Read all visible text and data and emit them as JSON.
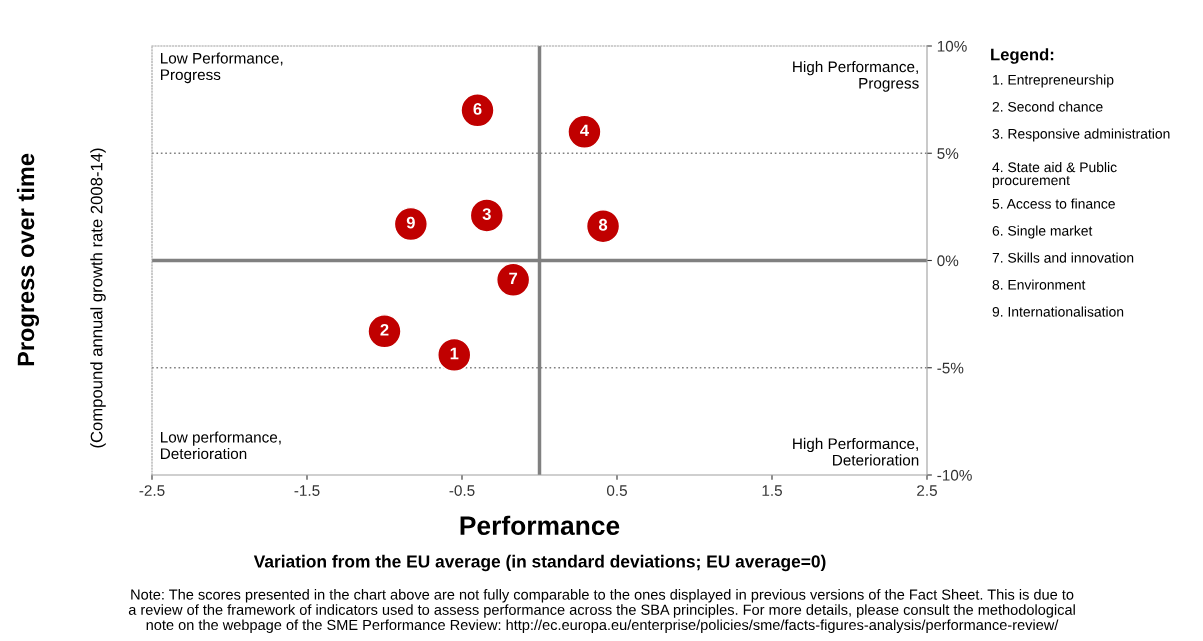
{
  "chart_data": {
    "type": "scatter",
    "xlabel": "Performance",
    "ylabel": "Progress over time",
    "x": [
      -0.55,
      -1.0,
      -0.34,
      0.29,
      -0.4,
      -0.17,
      0.41,
      -0.83
    ],
    "values": [
      -4.4,
      -3.3,
      2.1,
      6.0,
      7.0,
      -0.9,
      1.6,
      1.7
    ],
    "color": "#c00000",
    "marker": "circle",
    "grid": false,
    "xlim": [
      -2.5,
      2.5
    ],
    "xticks": [
      -2.5,
      -1.5,
      -0.5,
      0.5,
      1.5,
      2.5
    ],
    "ylim": [
      -10,
      10
    ],
    "yticks": [
      {
        "value": -10,
        "label": "-10%"
      },
      {
        "value": -5,
        "label": "-5%"
      },
      {
        "value": 0,
        "label": "0%"
      },
      {
        "value": 5,
        "label": "5%"
      },
      {
        "value": 10,
        "label": "10%"
      }
    ],
    "ref_lines": [
      {
        "axis": "x",
        "value": 0,
        "color": "#808080",
        "line_style": "solid"
      },
      {
        "axis": "y",
        "value": 0,
        "color": "#808080",
        "line_style": "solid"
      },
      {
        "axis": "y",
        "value": 5,
        "color": "#808080",
        "line_style": "dotted"
      },
      {
        "axis": "y",
        "value": -5,
        "color": "#808080",
        "line_style": "dotted"
      }
    ],
    "annotations": [
      {
        "text": "1",
        "x": -0.55,
        "y": -4.4
      },
      {
        "text": "2",
        "x": -1.0,
        "y": -3.3
      },
      {
        "text": "3",
        "x": -0.34,
        "y": 2.1
      },
      {
        "text": "4",
        "x": 0.29,
        "y": 6.0
      },
      {
        "text": "6",
        "x": -0.4,
        "y": 7.0
      },
      {
        "text": "7",
        "x": -0.17,
        "y": -0.9
      },
      {
        "text": "8",
        "x": 0.41,
        "y": 1.6
      },
      {
        "text": "9",
        "x": -0.83,
        "y": 1.7
      },
      "Low Performance,\nProgress",
      "High Performance,\nProgress",
      "Low performance,\nDeterioration",
      "High Performance,\nDeterioration",
      "Legend:",
      "1. Entrepreneurship",
      "2. Second chance",
      "3. Responsive administration",
      "4. State aid & Public\nprocurement",
      "5. Access to finance",
      "6. Single market",
      "7. Skills and innovation",
      "8. Environment",
      "9. Internationalisation",
      "(Compound annual growth rate 2008-14)",
      "Variation from the EU average (in standard deviations; EU average=0)",
      "Note: The scores presented in the chart above are not fully comparable to the ones displayed in previous versions of the Fact Sheet. This is due to\na review of the framework of indicators used to assess performance across the SBA principles. For more details, please consult the methodological\nnote on the webpage of the SME Performance Review: http://ec.europa.eu/enterprise/policies/sme/facts-figures-analysis/performance-review/"
    ]
  }
}
